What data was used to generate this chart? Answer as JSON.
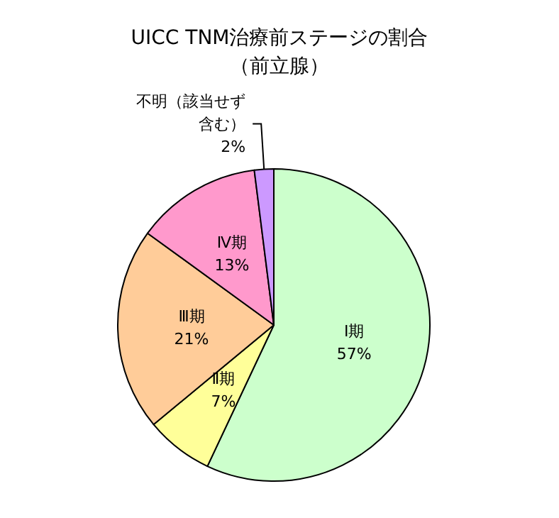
{
  "chart_data": {
    "type": "pie",
    "title": "UICC TNM治療前ステージの割合（前立腺）",
    "categories": [
      "Ⅰ期",
      "Ⅱ期",
      "Ⅲ期",
      "Ⅳ期",
      "不明（該当せず含む）"
    ],
    "values": [
      57,
      7,
      21,
      13,
      2
    ],
    "value_labels": [
      "57%",
      "7%",
      "21%",
      "13%",
      "2%"
    ],
    "colors": [
      "#ccffcc",
      "#ffff99",
      "#ffcc99",
      "#ff99cc",
      "#cc99ff"
    ],
    "legend": false
  }
}
